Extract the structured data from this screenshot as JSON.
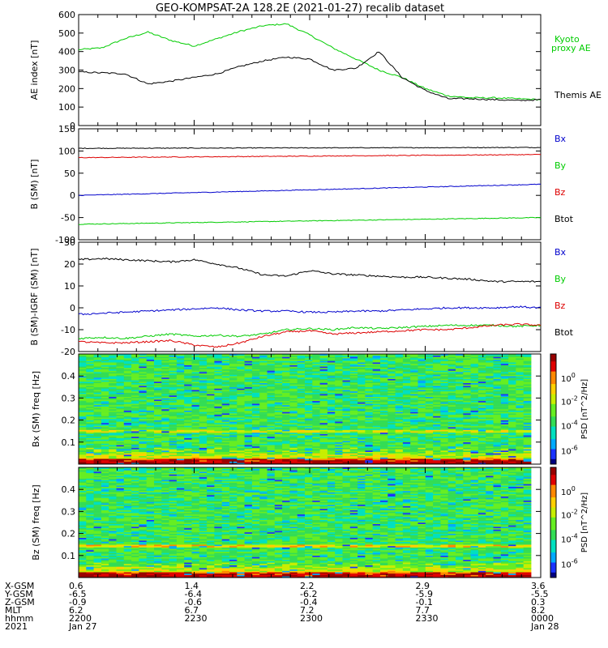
{
  "title": "GEO-KOMPSAT-2A 128.2E (2021-01-27) recalib dataset",
  "colors": {
    "black": "#000000",
    "blue": "#0000cc",
    "green": "#00cc00",
    "red": "#dd0000"
  },
  "chart_data": [
    {
      "type": "line",
      "id": "ae",
      "ylabel": "AE index [nT]",
      "ylim": [
        0,
        600
      ],
      "yticks": [
        0,
        100,
        200,
        300,
        400,
        500,
        600
      ],
      "x": [
        0,
        5,
        10,
        15,
        20,
        25,
        30,
        35,
        40,
        45,
        50,
        55,
        60,
        65,
        70,
        75,
        80,
        85,
        90,
        95,
        100
      ],
      "series": [
        {
          "name": "Kyoto proxy AE",
          "color": "#00cc00",
          "values": [
            410,
            420,
            470,
            505,
            460,
            430,
            470,
            510,
            540,
            550,
            490,
            420,
            360,
            300,
            260,
            200,
            160,
            150,
            150,
            145,
            140
          ]
        },
        {
          "name": "Themis AE",
          "color": "#000000",
          "values": [
            290,
            285,
            280,
            225,
            240,
            260,
            280,
            320,
            350,
            370,
            360,
            300,
            310,
            400,
            260,
            190,
            145,
            145,
            140,
            135,
            140
          ]
        }
      ]
    },
    {
      "type": "line",
      "id": "bsm",
      "ylabel": "B (SM) [nT]",
      "ylim": [
        -100,
        150
      ],
      "yticks": [
        -100,
        -50,
        0,
        50,
        100,
        150
      ],
      "series": [
        {
          "name": "Bx",
          "color": "#000000",
          "start": 106,
          "end": 108
        },
        {
          "name": "By",
          "color": "#00cc00",
          "start": -65,
          "end": -50
        },
        {
          "name": "Bz",
          "color": "#dd0000",
          "start": 85,
          "end": 92
        },
        {
          "name": "Btot",
          "color": "#0000cc",
          "start": 0,
          "end": 25
        }
      ],
      "legend": [
        "Bx",
        "By",
        "Bz",
        "Btot"
      ]
    },
    {
      "type": "line",
      "id": "bigrf",
      "ylabel": "B (SM)-IGRF (SM) [nT]",
      "ylim": [
        -20,
        30
      ],
      "yticks": [
        -20,
        -10,
        0,
        10,
        20,
        30
      ],
      "series": [
        {
          "name": "Bx",
          "color": "#000000",
          "values": [
            22,
            22.5,
            22,
            21.5,
            21,
            22,
            20,
            18,
            15,
            14.5,
            17,
            15.5,
            15,
            14.5,
            14,
            14,
            13.5,
            13,
            12,
            12,
            12
          ]
        },
        {
          "name": "By",
          "color": "#00cc00",
          "values": [
            -14,
            -13.5,
            -14,
            -13,
            -12,
            -13,
            -12.5,
            -13,
            -12,
            -10,
            -9.5,
            -10,
            -9,
            -9.5,
            -9,
            -8.5,
            -8,
            -8,
            -8,
            -8.5,
            -8
          ]
        },
        {
          "name": "Bz",
          "color": "#dd0000",
          "values": [
            -15.5,
            -16,
            -16,
            -15.5,
            -15,
            -17,
            -18,
            -16,
            -13,
            -11,
            -10.5,
            -12,
            -11.5,
            -11,
            -10.5,
            -10,
            -10,
            -9,
            -8,
            -7.5,
            -8
          ]
        },
        {
          "name": "Btot",
          "color": "#0000cc",
          "values": [
            -3,
            -2.5,
            -2,
            -1.5,
            -1,
            -0.5,
            0,
            -1,
            -1.5,
            -1.5,
            -2,
            -2,
            -1.5,
            -1.5,
            -1,
            -0.5,
            0,
            0,
            0,
            0.5,
            0
          ]
        }
      ],
      "legend": [
        "Bx",
        "By",
        "Bz",
        "Btot"
      ]
    },
    {
      "type": "heatmap",
      "id": "specx",
      "ylabel": "Bx (SM) freq [Hz]",
      "ylim": [
        0,
        0.5
      ],
      "yticks": [
        0.1,
        0.2,
        0.3,
        0.4
      ],
      "colorbar": {
        "label": "PSD [nT^2/Hz]",
        "ticks": [
          "10^0",
          "10^-2",
          "10^-4",
          "10^-6"
        ]
      }
    },
    {
      "type": "heatmap",
      "id": "specz",
      "ylabel": "Bz (SM) freq [Hz]",
      "ylim": [
        0,
        0.5
      ],
      "yticks": [
        0.1,
        0.2,
        0.3,
        0.4
      ],
      "colorbar": {
        "label": "PSD [nT^2/Hz]",
        "ticks": [
          "10^0",
          "10^-2",
          "10^-4",
          "10^-6"
        ]
      }
    }
  ],
  "time_axis": {
    "row_labels": [
      "X-GSM",
      "Y-GSM",
      "Z-GSM",
      "MLT",
      "hhmm",
      "2021"
    ],
    "columns": [
      {
        "values": [
          "0.6",
          "-6.5",
          "-0.9",
          "6.2",
          "2200",
          "Jan 27"
        ]
      },
      {
        "values": [
          "1.4",
          "-6.4",
          "-0.6",
          "6.7",
          "2230",
          ""
        ]
      },
      {
        "values": [
          "2.2",
          "-6.2",
          "-0.4",
          "7.2",
          "2300",
          ""
        ]
      },
      {
        "values": [
          "2.9",
          "-5.9",
          "-0.1",
          "7.7",
          "2330",
          ""
        ]
      },
      {
        "values": [
          "3.6",
          "-5.5",
          "0.3",
          "8.2",
          "0000",
          "Jan 28"
        ]
      }
    ]
  }
}
